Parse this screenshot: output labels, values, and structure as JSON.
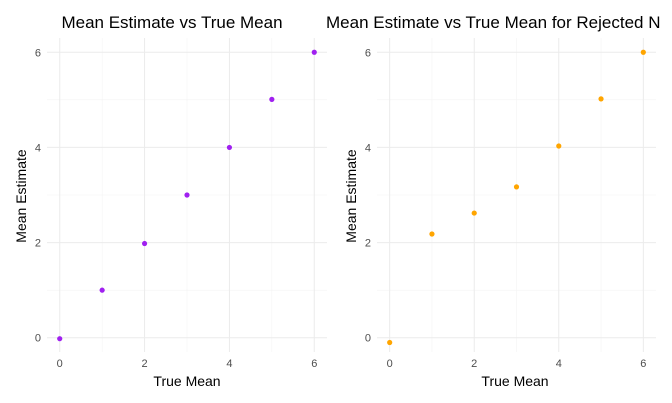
{
  "chart_data": [
    {
      "type": "scatter",
      "title": "Mean Estimate vs True Mean",
      "xlabel": "True Mean",
      "ylabel": "Mean Estimate",
      "x": [
        0,
        1,
        2,
        3,
        4,
        5,
        6
      ],
      "y": [
        -0.02,
        1.0,
        1.98,
        3.0,
        4.0,
        5.01,
        6.0
      ],
      "xlim": [
        -0.3,
        6.3
      ],
      "ylim": [
        -0.3,
        6.3
      ],
      "xticks": [
        0,
        2,
        4,
        6
      ],
      "yticks": [
        0,
        2,
        4,
        6
      ],
      "grid": true,
      "point_color": "#a020f0"
    },
    {
      "type": "scatter",
      "title": "Mean Estimate vs True Mean for Rejected N",
      "xlabel": "True Mean",
      "ylabel": "Mean Estimate",
      "x": [
        0,
        1,
        2,
        3,
        4,
        5,
        6
      ],
      "y": [
        -0.1,
        2.18,
        2.62,
        3.17,
        4.03,
        5.02,
        6.0
      ],
      "xlim": [
        -0.3,
        6.3
      ],
      "ylim": [
        -0.3,
        6.3
      ],
      "xticks": [
        0,
        2,
        4,
        6
      ],
      "yticks": [
        0,
        2,
        4,
        6
      ],
      "grid": true,
      "point_color": "#ffa500"
    }
  ]
}
